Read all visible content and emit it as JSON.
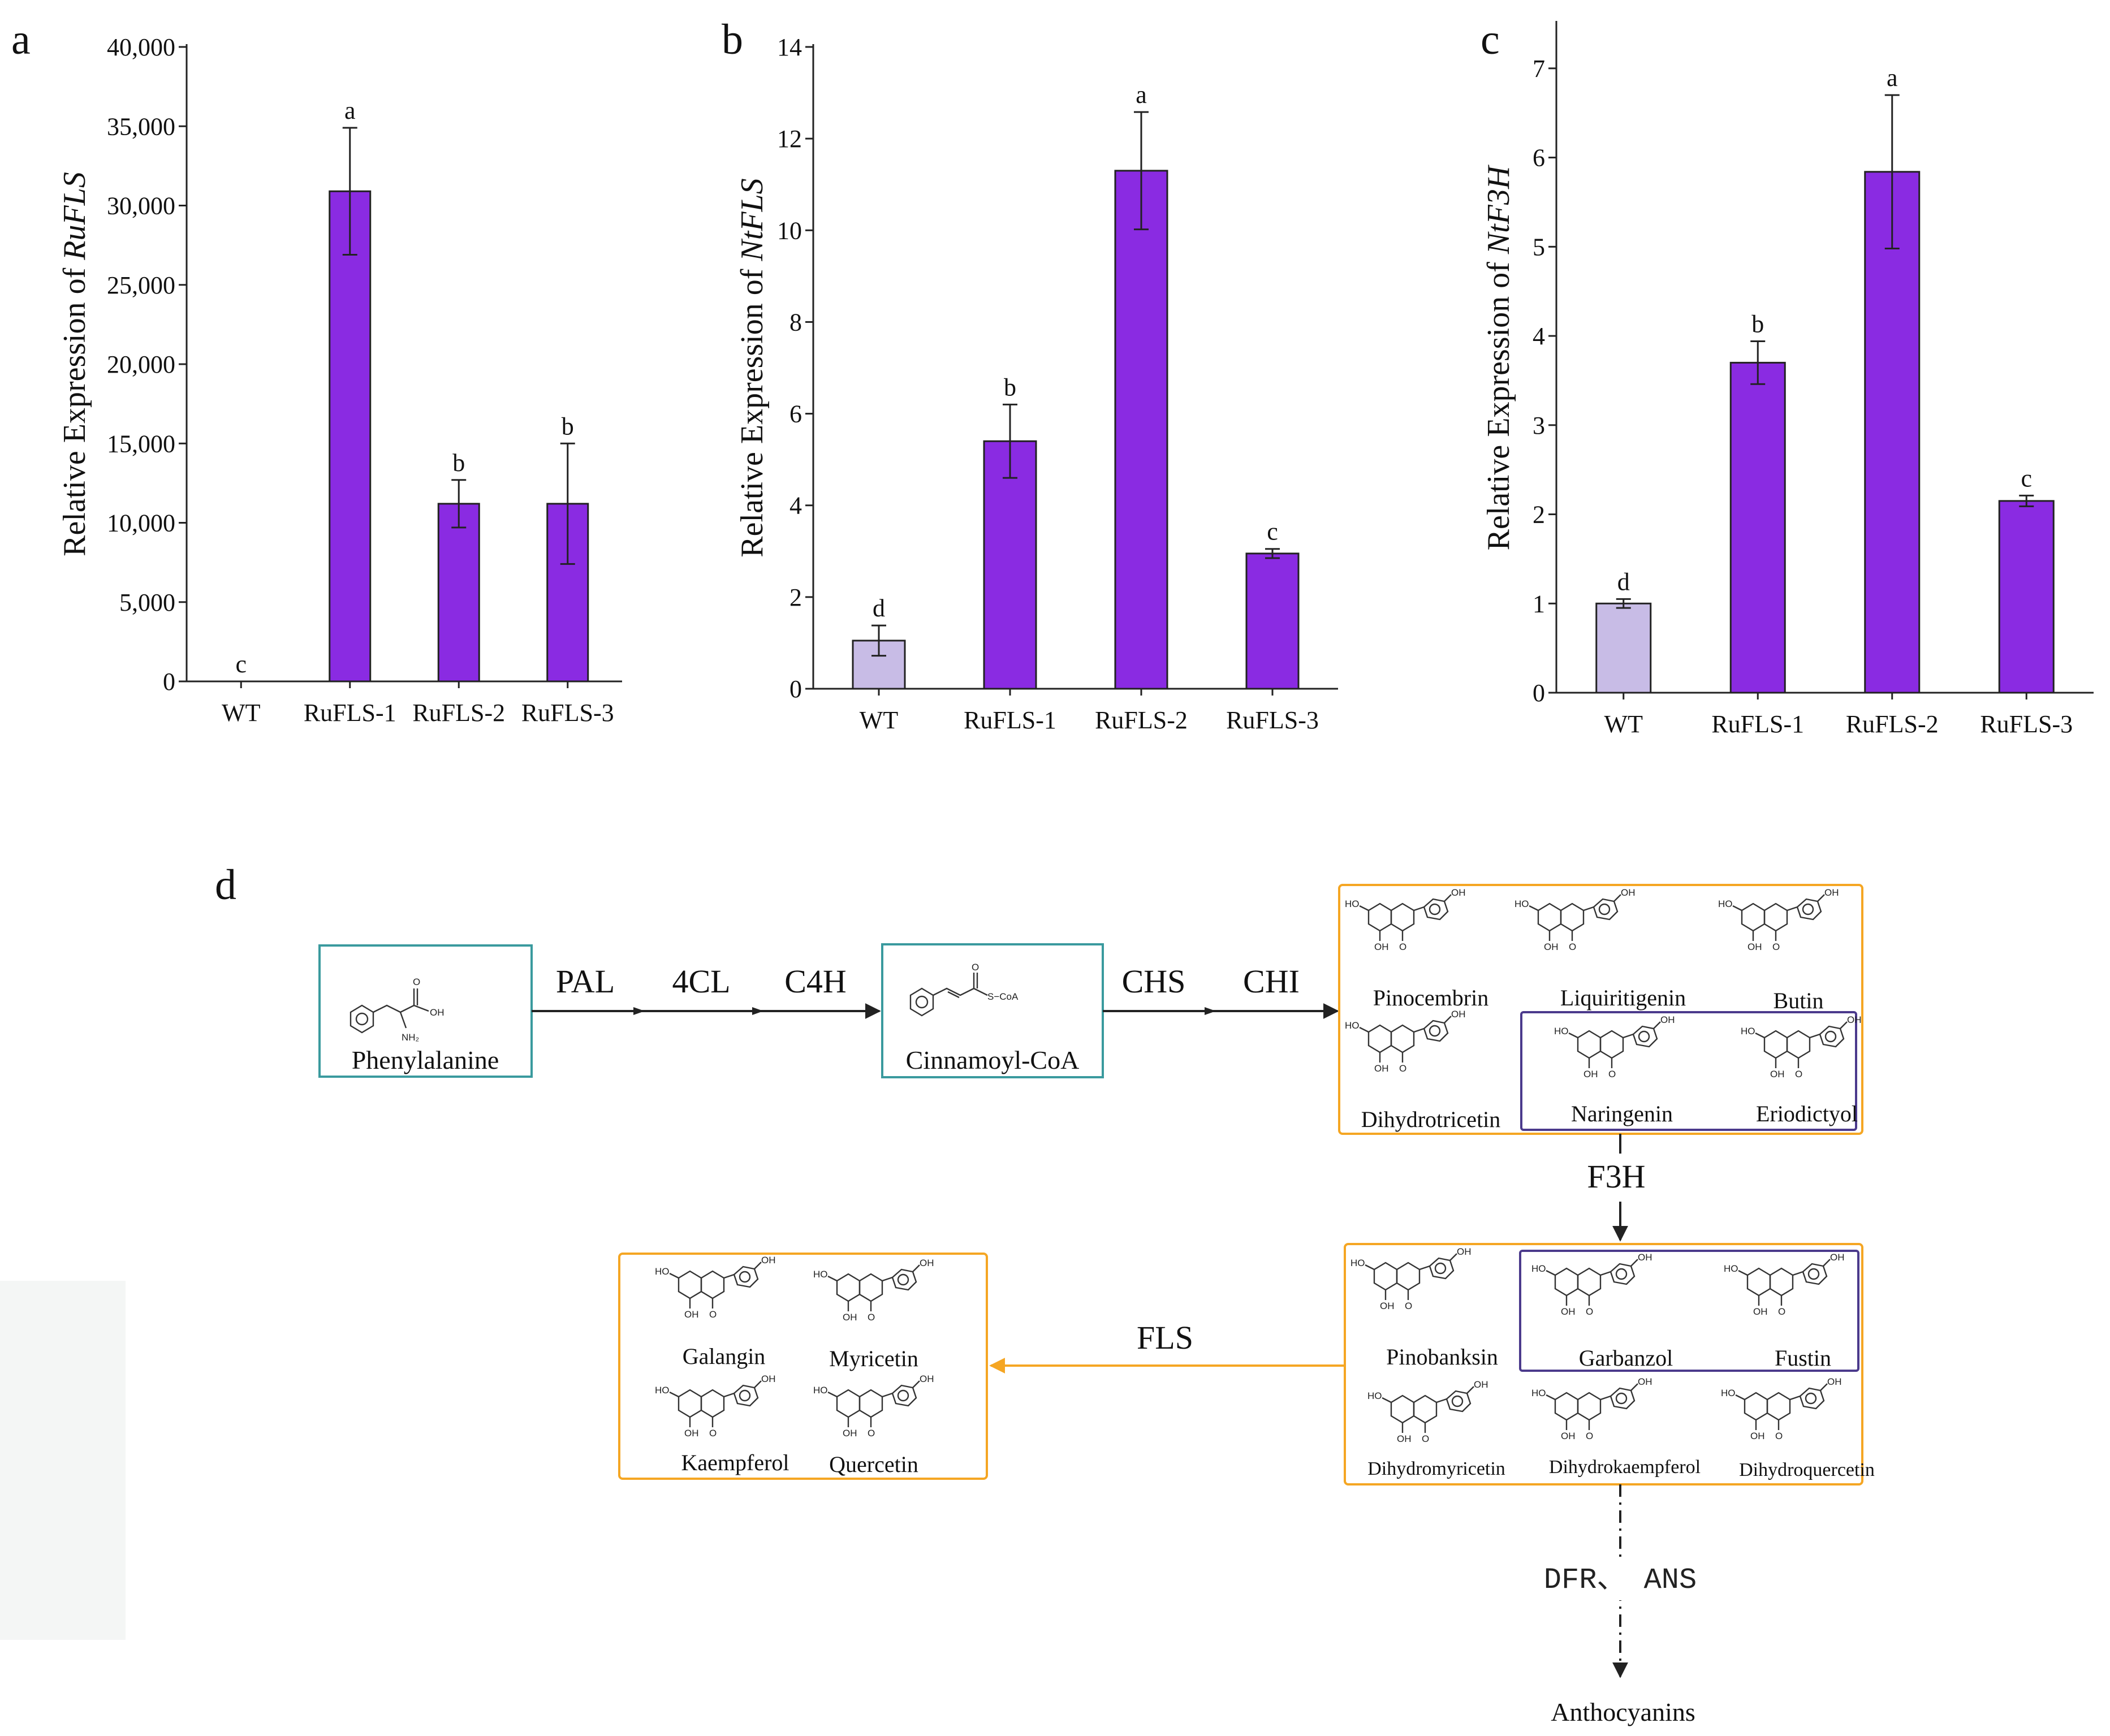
{
  "colors": {
    "bar_fill": "#8a2be2",
    "wt_fill": "#c8bce6",
    "teal_box": "#3a9a9e",
    "orange_box": "#f5a623",
    "purple_box": "#4b3a8c",
    "fls_arrow": "#f5a623"
  },
  "chart_data": [
    {
      "type": "bar",
      "panel": "a",
      "ylabel_prefix": "Relative Expression of ",
      "ylabel_gene": "RuFLS",
      "categories": [
        "WT",
        "RuFLS-1",
        "RuFLS-2",
        "RuFLS-3"
      ],
      "values": [
        0,
        30900,
        11200,
        11200
      ],
      "errors": [
        0,
        4000,
        1500,
        3800
      ],
      "letters": [
        "c",
        "a",
        "b",
        "b"
      ],
      "ylim": [
        0,
        40000
      ],
      "yticks": [
        0,
        5000,
        10000,
        15000,
        20000,
        25000,
        30000,
        35000,
        40000
      ],
      "ytick_labels": [
        "0",
        "5,000",
        "10,000",
        "15,000",
        "20,000",
        "25,000",
        "30,000",
        "35,000",
        "40,000"
      ]
    },
    {
      "type": "bar",
      "panel": "b",
      "ylabel_prefix": "Relative Expression of ",
      "ylabel_gene": "NtFLS",
      "categories": [
        "WT",
        "RuFLS-1",
        "RuFLS-2",
        "RuFLS-3"
      ],
      "values": [
        1.05,
        5.4,
        11.3,
        2.95
      ],
      "errors": [
        0.33,
        0.8,
        1.28,
        0.1
      ],
      "letters": [
        "d",
        "b",
        "a",
        "c"
      ],
      "ylim": [
        0,
        14
      ],
      "yticks": [
        0,
        2,
        4,
        6,
        8,
        10,
        12,
        14
      ],
      "ytick_labels": [
        "0",
        "2",
        "4",
        "6",
        "8",
        "10",
        "12",
        "14"
      ]
    },
    {
      "type": "bar",
      "panel": "c",
      "ylabel_prefix": "Relative Expression of ",
      "ylabel_gene": "NtF3H",
      "categories": [
        "WT",
        "RuFLS-1",
        "RuFLS-2",
        "RuFLS-3"
      ],
      "values": [
        1.0,
        3.7,
        5.84,
        2.15
      ],
      "errors": [
        0.05,
        0.24,
        0.86,
        0.06
      ],
      "letters": [
        "d",
        "b",
        "a",
        "c"
      ],
      "ylim": [
        0,
        7.5
      ],
      "yticks": [
        0,
        1,
        2,
        3,
        4,
        5,
        6,
        7
      ],
      "ytick_labels": [
        "0",
        "1",
        "2",
        "3",
        "4",
        "5",
        "6",
        "7"
      ]
    }
  ],
  "pathway": {
    "panel": "d",
    "start": "Phenylalanine",
    "enzymes_1": [
      "PAL",
      "4CL",
      "C4H"
    ],
    "intermediate": "Cinnamoyl-CoA",
    "enzymes_2": [
      "CHS",
      "CHI"
    ],
    "flavanones": [
      "Pinocembrin",
      "Liquiritigenin",
      "Butin",
      "Dihydrotricetin",
      "Naringenin",
      "Eriodictyol"
    ],
    "f3h": "F3H",
    "dihydroflavonols": [
      "Pinobanksin",
      "Garbanzol",
      "Fustin",
      "Dihydromyricetin",
      "Dihydrokaempferol",
      "Dihydroquercetin"
    ],
    "fls": "FLS",
    "flavonols": [
      "Galangin",
      "Myricetin",
      "Kaempferol",
      "Quercetin"
    ],
    "late_enzymes": "DFR、 ANS",
    "end": "Anthocyanins",
    "mol_labels": {
      "oh": "OH",
      "ho": "HO",
      "o": "O",
      "nh2": "NH₂",
      "scoa": "S−CoA"
    }
  }
}
